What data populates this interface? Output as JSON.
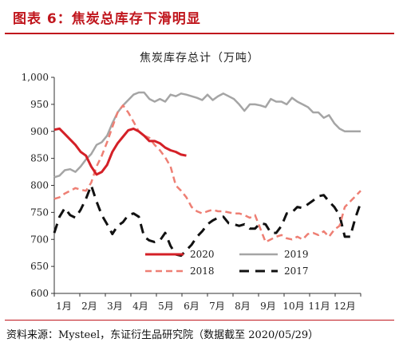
{
  "header": {
    "title": "图表 6：焦炭总库存下滑明显"
  },
  "source": "资料来源：Mysteel，东证衍生品研究院（数据截至 2020/05/29）",
  "colors": {
    "accent": "#c0161d",
    "s2020": "#d42027",
    "s2019": "#a5a5a5",
    "s2018": "#ee7f74",
    "s2017": "#111111"
  },
  "chart_data": {
    "type": "line",
    "title": "焦炭库存总计（万吨）",
    "xlabel": "",
    "ylabel": "",
    "ylim": [
      600,
      1000
    ],
    "yticks": [
      "600",
      "650",
      "700",
      "750",
      "800",
      "850",
      "900",
      "950",
      "1,000"
    ],
    "categories": [
      "1月",
      "2月",
      "3月",
      "4月",
      "5月",
      "6月",
      "7月",
      "8月",
      "9月",
      "10月",
      "11月",
      "12月"
    ],
    "grid": false,
    "legend_position": "bottom",
    "series": [
      {
        "name": "2020",
        "style": "solid-bold",
        "x": [
          0.0,
          0.2,
          0.4,
          0.6,
          0.8,
          1.0,
          1.2,
          1.4,
          1.6,
          1.8,
          2.0,
          2.2,
          2.4,
          2.6,
          2.8,
          3.0,
          3.2,
          3.4,
          3.6,
          3.8,
          4.0,
          4.2,
          4.4,
          4.6,
          4.8,
          5.0
        ],
        "y": [
          903,
          905,
          895,
          885,
          875,
          862,
          855,
          835,
          820,
          825,
          838,
          862,
          878,
          890,
          902,
          905,
          900,
          892,
          882,
          882,
          878,
          870,
          865,
          862,
          857,
          855
        ]
      },
      {
        "name": "2019",
        "style": "solid",
        "x": [
          0.0,
          0.2,
          0.4,
          0.6,
          0.8,
          1.0,
          1.2,
          1.4,
          1.6,
          1.8,
          2.0,
          2.2,
          2.4,
          2.6,
          2.8,
          3.0,
          3.2,
          3.4,
          3.6,
          3.8,
          4.0,
          4.2,
          4.4,
          4.6,
          4.8,
          5.0,
          5.2,
          5.4,
          5.6,
          5.8,
          6.0,
          6.2,
          6.4,
          6.6,
          6.8,
          7.0,
          7.2,
          7.4,
          7.6,
          7.8,
          8.0,
          8.2,
          8.4,
          8.6,
          8.8,
          9.0,
          9.2,
          9.4,
          9.6,
          9.8,
          10.0,
          10.2,
          10.4,
          10.6,
          10.8,
          11.0,
          11.2,
          11.4,
          11.6
        ],
        "y": [
          815,
          818,
          828,
          830,
          825,
          835,
          848,
          858,
          875,
          880,
          892,
          915,
          935,
          948,
          958,
          968,
          972,
          972,
          960,
          955,
          960,
          955,
          968,
          965,
          970,
          968,
          965,
          962,
          958,
          968,
          958,
          965,
          970,
          965,
          960,
          950,
          938,
          950,
          950,
          948,
          945,
          960,
          955,
          955,
          950,
          962,
          955,
          950,
          945,
          935,
          935,
          925,
          930,
          915,
          905,
          900,
          900,
          900,
          900
        ]
      },
      {
        "name": "2018",
        "style": "dashed",
        "x": [
          0.0,
          0.2,
          0.4,
          0.6,
          0.8,
          1.0,
          1.2,
          1.4,
          1.6,
          1.8,
          2.0,
          2.2,
          2.4,
          2.6,
          2.8,
          3.0,
          3.2,
          3.4,
          3.6,
          3.8,
          4.0,
          4.2,
          4.4,
          4.6,
          4.8,
          5.0,
          5.2,
          5.4,
          5.6,
          5.8,
          6.0,
          6.2,
          6.4,
          6.6,
          6.8,
          7.0,
          7.2,
          7.4,
          7.6,
          7.8,
          8.0,
          8.2,
          8.4,
          8.6,
          8.8,
          9.0,
          9.2,
          9.4,
          9.6,
          9.8,
          10.0,
          10.2,
          10.4,
          10.6,
          10.8,
          11.0,
          11.2,
          11.4,
          11.6
        ],
        "y": [
          775,
          778,
          785,
          790,
          795,
          792,
          790,
          805,
          835,
          855,
          880,
          908,
          935,
          948,
          935,
          918,
          900,
          892,
          888,
          875,
          865,
          852,
          835,
          800,
          790,
          778,
          760,
          752,
          748,
          752,
          755,
          752,
          752,
          750,
          748,
          748,
          745,
          740,
          745,
          720,
          695,
          700,
          705,
          708,
          702,
          700,
          705,
          700,
          710,
          712,
          708,
          715,
          705,
          718,
          725,
          760,
          770,
          780,
          790
        ]
      },
      {
        "name": "2017",
        "style": "dashed-bold",
        "x": [
          0.0,
          0.2,
          0.4,
          0.6,
          0.8,
          1.0,
          1.2,
          1.4,
          1.6,
          1.8,
          2.0,
          2.2,
          2.4,
          2.6,
          2.8,
          3.0,
          3.2,
          3.4,
          3.6,
          3.8,
          4.0,
          4.2,
          4.4,
          4.6,
          4.8,
          5.0,
          5.2,
          5.4,
          5.6,
          5.8,
          6.0,
          6.2,
          6.4,
          6.6,
          6.8,
          7.0,
          7.2,
          7.4,
          7.6,
          7.8,
          8.0,
          8.2,
          8.4,
          8.6,
          8.8,
          9.0,
          9.2,
          9.4,
          9.6,
          9.8,
          10.0,
          10.2,
          10.4,
          10.6,
          10.8,
          11.0,
          11.2,
          11.4,
          11.6
        ],
        "y": [
          712,
          742,
          758,
          745,
          740,
          755,
          775,
          800,
          770,
          745,
          728,
          710,
          725,
          732,
          745,
          748,
          742,
          705,
          698,
          695,
          698,
          712,
          688,
          672,
          670,
          680,
          690,
          705,
          715,
          728,
          735,
          740,
          742,
          730,
          728,
          725,
          728,
          720,
          720,
          730,
          728,
          712,
          712,
          725,
          748,
          750,
          760,
          758,
          765,
          772,
          780,
          782,
          770,
          760,
          745,
          705,
          705,
          740,
          768
        ]
      }
    ]
  }
}
